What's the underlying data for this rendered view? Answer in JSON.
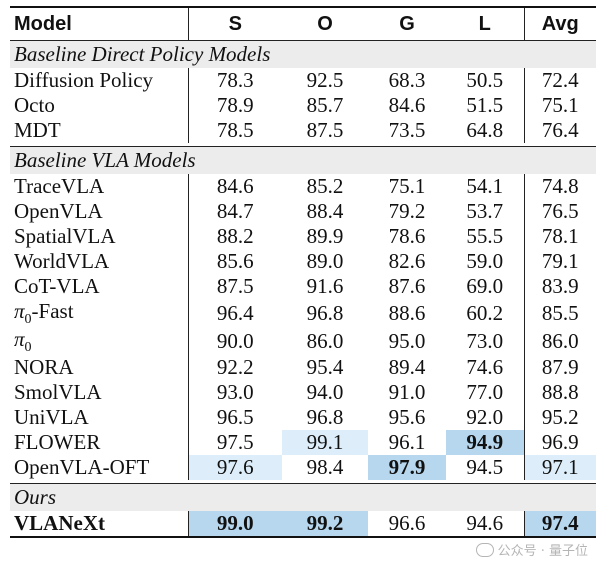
{
  "headers": {
    "model": "Model",
    "s": "S",
    "o": "O",
    "g": "G",
    "l": "L",
    "avg": "Avg"
  },
  "section_baseline_direct": "Baseline Direct Policy Models",
  "baseline_direct": [
    {
      "model": "Diffusion Policy",
      "s": "78.3",
      "o": "92.5",
      "g": "68.3",
      "l": "50.5",
      "avg": "72.4"
    },
    {
      "model": "Octo",
      "s": "78.9",
      "o": "85.7",
      "g": "84.6",
      "l": "51.5",
      "avg": "75.1"
    },
    {
      "model": "MDT",
      "s": "78.5",
      "o": "87.5",
      "g": "73.5",
      "l": "64.8",
      "avg": "76.4"
    }
  ],
  "section_baseline_vla": "Baseline VLA Models",
  "baseline_vla": [
    {
      "model": "TraceVLA",
      "s": "84.6",
      "o": "85.2",
      "g": "75.1",
      "l": "54.1",
      "avg": "74.8"
    },
    {
      "model": "OpenVLA",
      "s": "84.7",
      "o": "88.4",
      "g": "79.2",
      "l": "53.7",
      "avg": "76.5"
    },
    {
      "model": "SpatialVLA",
      "s": "88.2",
      "o": "89.9",
      "g": "78.6",
      "l": "55.5",
      "avg": "78.1"
    },
    {
      "model": "WorldVLA",
      "s": "85.6",
      "o": "89.0",
      "g": "82.6",
      "l": "59.0",
      "avg": "79.1"
    },
    {
      "model": "CoT-VLA",
      "s": "87.5",
      "o": "91.6",
      "g": "87.6",
      "l": "69.0",
      "avg": "83.9"
    },
    {
      "model_pi": "π",
      "model_sub": "0",
      "model_suffix": "-Fast",
      "s": "96.4",
      "o": "96.8",
      "g": "88.6",
      "l": "60.2",
      "avg": "85.5"
    },
    {
      "model_pi": "π",
      "model_sub": "0",
      "model_suffix": "",
      "s": "90.0",
      "o": "86.0",
      "g": "95.0",
      "l": "73.0",
      "avg": "86.0"
    },
    {
      "model": "NORA",
      "s": "92.2",
      "o": "95.4",
      "g": "89.4",
      "l": "74.6",
      "avg": "87.9"
    },
    {
      "model": "SmolVLA",
      "s": "93.0",
      "o": "94.0",
      "g": "91.0",
      "l": "77.0",
      "avg": "88.8"
    },
    {
      "model": "UniVLA",
      "s": "96.5",
      "o": "96.8",
      "g": "95.6",
      "l": "92.0",
      "avg": "95.2"
    },
    {
      "model": "FLOWER",
      "s": "97.5",
      "o": "99.1",
      "g": "96.1",
      "l": "94.9",
      "avg": "96.9"
    },
    {
      "model": "OpenVLA-OFT",
      "s": "97.6",
      "o": "98.4",
      "g": "97.9",
      "l": "94.5",
      "avg": "97.1"
    }
  ],
  "section_ours": "Ours",
  "ours": {
    "model": "VLANeXt",
    "s": "99.0",
    "o": "99.2",
    "g": "96.6",
    "l": "94.6",
    "avg": "97.4"
  },
  "watermark": "公众号 · 量子位",
  "colors": {
    "strong_highlight": "#b7d7ee",
    "light_highlight": "#ddeefa",
    "section_bg": "#ececec"
  }
}
